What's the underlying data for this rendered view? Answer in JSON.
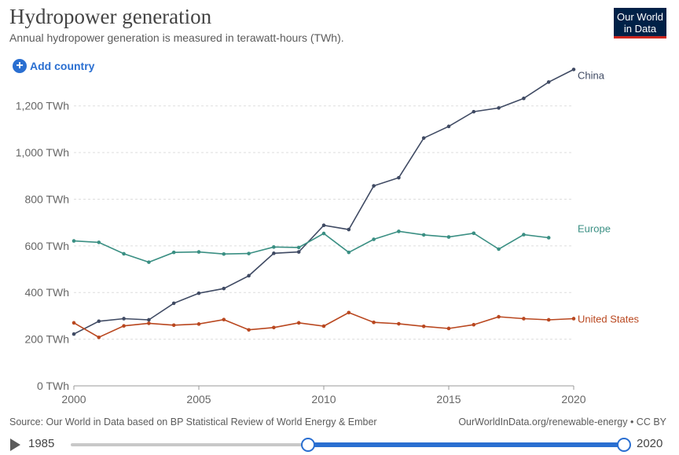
{
  "header": {
    "title": "Hydropower generation",
    "subtitle": "Annual hydropower generation is measured in terawatt-hours (TWh).",
    "logo_line1": "Our World",
    "logo_line2": "in Data"
  },
  "controls": {
    "add_country_label": "Add country"
  },
  "footer": {
    "source": "Source: Our World in Data based on BP Statistical Review of World Energy & Ember",
    "license": "OurWorldInData.org/renewable-energy • CC BY"
  },
  "timeline": {
    "start_year": "1985",
    "end_year": "2020",
    "selected_start": 2000,
    "selected_end": 2020
  },
  "colors": {
    "china": "#3f4a63",
    "europe": "#3a8f83",
    "united_states": "#b9471f",
    "accent": "#2a6fd1"
  },
  "chart_data": {
    "type": "line",
    "title": "Hydropower generation",
    "xlabel": "",
    "ylabel": "",
    "xlim": [
      2000,
      2020
    ],
    "ylim": [
      0,
      1300
    ],
    "x_ticks": [
      2000,
      2005,
      2010,
      2015,
      2020
    ],
    "y_ticks": [
      0,
      200,
      400,
      600,
      800,
      1000,
      1200
    ],
    "y_tick_labels": [
      "0 TWh",
      "200 TWh",
      "400 TWh",
      "600 TWh",
      "800 TWh",
      "1,000 TWh",
      "1,200 TWh"
    ],
    "grid": true,
    "series": [
      {
        "name": "China",
        "color": "#3f4a63",
        "x": [
          2000,
          2001,
          2002,
          2003,
          2004,
          2005,
          2006,
          2007,
          2008,
          2009,
          2010,
          2011,
          2012,
          2013,
          2014,
          2015,
          2016,
          2017,
          2018,
          2019,
          2020
        ],
        "values": [
          222,
          277,
          288,
          283,
          354,
          397,
          417,
          472,
          568,
          574,
          688,
          670,
          857,
          892,
          1062,
          1112,
          1175,
          1191,
          1232,
          1302,
          1356
        ]
      },
      {
        "name": "Europe",
        "color": "#3a8f83",
        "x": [
          2000,
          2001,
          2002,
          2003,
          2004,
          2005,
          2006,
          2007,
          2008,
          2009,
          2010,
          2011,
          2012,
          2013,
          2014,
          2015,
          2016,
          2017,
          2018,
          2019
        ],
        "values": [
          621,
          615,
          566,
          530,
          572,
          574,
          565,
          567,
          595,
          593,
          653,
          572,
          628,
          662,
          647,
          638,
          654,
          586,
          648,
          635
        ]
      },
      {
        "name": "United States",
        "color": "#b9471f",
        "x": [
          2000,
          2001,
          2002,
          2003,
          2004,
          2005,
          2006,
          2007,
          2008,
          2009,
          2010,
          2011,
          2012,
          2013,
          2014,
          2015,
          2016,
          2017,
          2018,
          2019,
          2020
        ],
        "values": [
          270,
          208,
          257,
          268,
          260,
          265,
          284,
          240,
          250,
          270,
          256,
          314,
          272,
          266,
          255,
          246,
          262,
          296,
          288,
          283,
          288
        ]
      }
    ]
  }
}
